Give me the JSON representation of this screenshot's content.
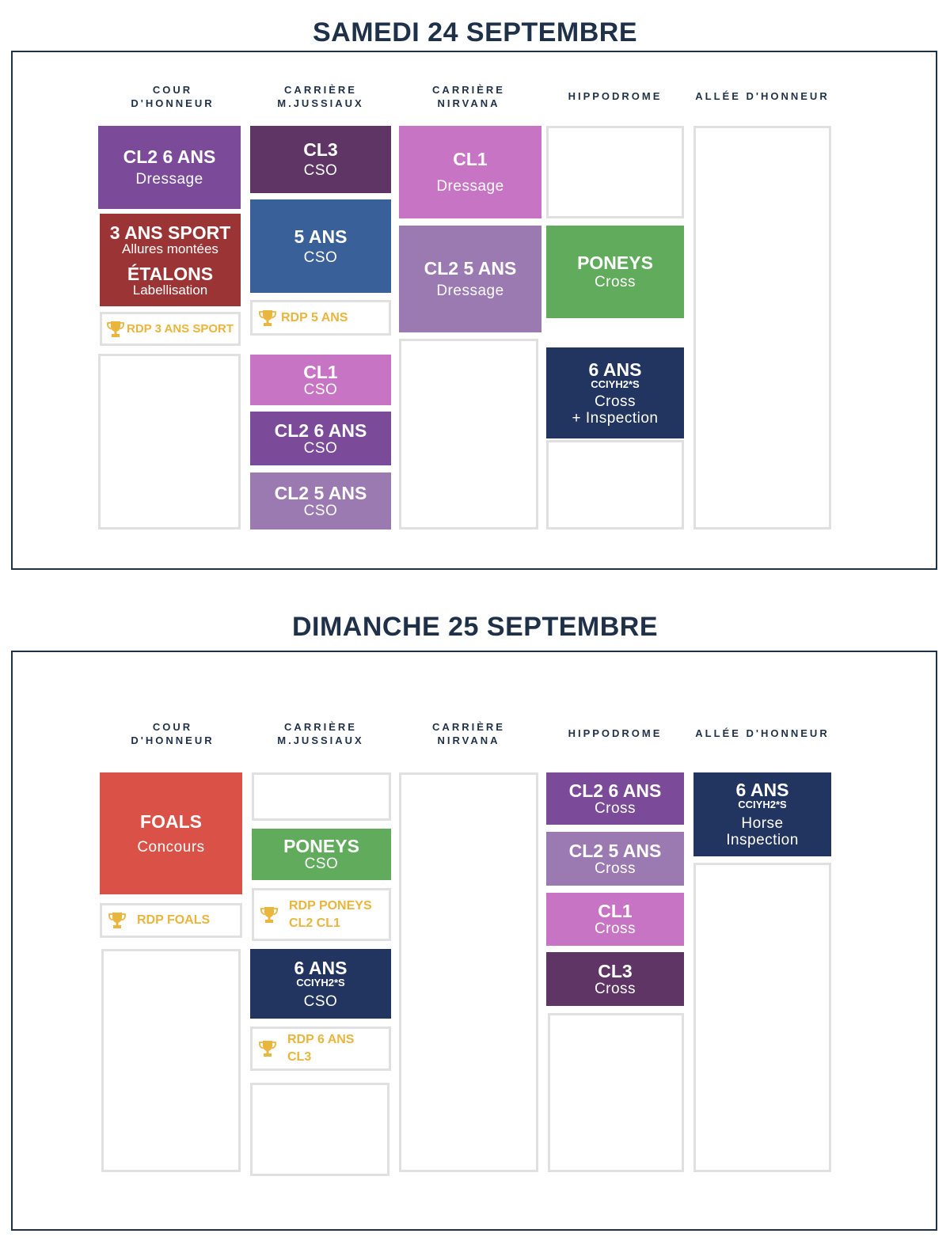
{
  "colors": {
    "navy": "#1f3149",
    "purple": "#7b4a98",
    "dark_purple": "#5f3566",
    "light_purple": "#9b7ab2",
    "pink": "#c874c4",
    "blue": "#3a6099",
    "red": "#9b3535",
    "green": "#61ac5c",
    "coral": "#d95147",
    "dark_navy": "#223460",
    "gold": "#e9b53c",
    "empty_border": "#e0e0e0"
  },
  "saturday": {
    "title": "SAMEDI 24 SEPTEMBRE",
    "columns": [
      "COUR\nD'HONNEUR",
      "CARRIÈRE\nM.JUSSIAUX",
      "CARRIÈRE\nNIRVANA",
      "HIPPODROME",
      "ALLÉE D'HONNEUR"
    ],
    "cour": {
      "b1": {
        "title": "CL2 6 ANS",
        "sub": "Dressage"
      },
      "b2": {
        "title": "3 ANS SPORT",
        "sub": "Allures montées",
        "title2": "ÉTALONS",
        "sub2": "Labellisation"
      },
      "rdp": "RDP 3 ANS SPORT"
    },
    "jussiaux": {
      "b1": {
        "title": "CL3",
        "sub": "CSO"
      },
      "b2": {
        "title": "5 ANS",
        "sub": "CSO"
      },
      "rdp": "RDP 5 ANS",
      "b3": {
        "title": "CL1",
        "sub": "CSO"
      },
      "b4": {
        "title": "CL2 6 ANS",
        "sub": "CSO"
      },
      "b5": {
        "title": "CL2 5 ANS",
        "sub": "CSO"
      }
    },
    "nirvana": {
      "b1": {
        "title": "CL1",
        "sub": "Dressage"
      },
      "b2": {
        "title": "CL2 5 ANS",
        "sub": "Dressage"
      }
    },
    "hippodrome": {
      "b1": {
        "title": "PONEYS",
        "sub": "Cross"
      },
      "b2": {
        "title": "6 ANS",
        "small": "CCIYH2*S",
        "sub": "Cross",
        "sub2": "+ Inspection"
      }
    }
  },
  "sunday": {
    "title": "DIMANCHE 25 SEPTEMBRE",
    "columns": [
      "COUR\nD'HONNEUR",
      "CARRIÈRE\nM.JUSSIAUX",
      "CARRIÈRE\nNIRVANA",
      "HIPPODROME",
      "ALLÉE D'HONNEUR"
    ],
    "cour": {
      "b1": {
        "title": "FOALS",
        "sub": "Concours"
      },
      "rdp": "RDP FOALS"
    },
    "jussiaux": {
      "b1": {
        "title": "PONEYS",
        "sub": "CSO"
      },
      "rdp1": "RDP PONEYS\nCL2 CL1",
      "b2": {
        "title": "6 ANS",
        "small": "CCIYH2*S",
        "sub": "CSO"
      },
      "rdp2": "RDP 6 ANS\nCL3"
    },
    "hippodrome": {
      "b1": {
        "title": "CL2 6 ANS",
        "sub": "Cross"
      },
      "b2": {
        "title": "CL2 5 ANS",
        "sub": "Cross"
      },
      "b3": {
        "title": "CL1",
        "sub": "Cross"
      },
      "b4": {
        "title": "CL3",
        "sub": "Cross"
      }
    },
    "allee": {
      "b1": {
        "title": "6 ANS",
        "small": "CCIYH2*S",
        "sub": "Horse",
        "sub2": "Inspection"
      }
    }
  },
  "icons": {
    "trophy": "trophy-icon"
  }
}
